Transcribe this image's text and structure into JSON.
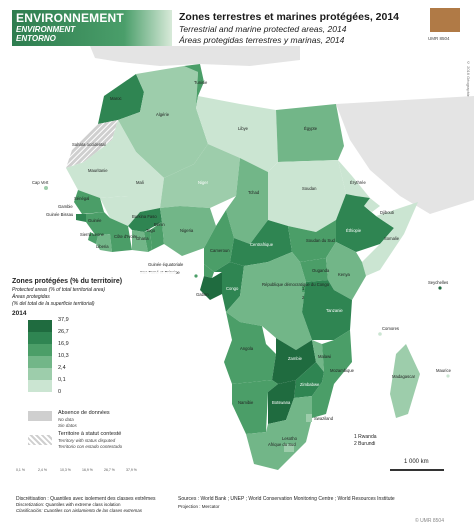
{
  "header": {
    "theme_fr": "ENVIRONNEMENT",
    "theme_en": "ENVIRONMENT",
    "theme_es": "ENTORNO",
    "title_fr": "Zones terrestres et marines protégées, 2014",
    "title_en": "Terrestrial and marine protected areas, 2014",
    "title_es": "Áreas protegidas terrestres y marinas, 2014",
    "logo_text": "UMR 8504"
  },
  "side_credit": "© 2016 Géographie-cités",
  "colors": {
    "c1": "#1f6b3f",
    "c2": "#2f8552",
    "c3": "#4b9e68",
    "c4": "#72b688",
    "c5": "#9dcdab",
    "c6": "#cbe5d2",
    "no_data": "#cfcfcf",
    "sea": "#ffffff",
    "outside": "#e4e4e4"
  },
  "legend": {
    "title_fr": "Zones protégées (% du territoire)",
    "title_en": "Protected areas (% of total territorial area)",
    "title_es1": "Áreas protegidas",
    "title_es2": "(% del total de la superficie territorial)",
    "year": "2014",
    "breaks": [
      "37,9",
      "26,7",
      "16,9",
      "10,3",
      "2,4",
      "0,1",
      "0"
    ],
    "no_data_fr": "Absence de données",
    "no_data_en": "No data",
    "no_data_es": "Sin datos",
    "disputed_fr": "Territoire à statut contesté",
    "disputed_en": "Territory with status disputed",
    "disputed_es": "Territorio con estado contestado"
  },
  "countries": {
    "maroc": "Maroc",
    "algerie": "Algérie",
    "tunisie": "Tunisie",
    "libye": "Libye",
    "egypte": "Égypte",
    "sahara": "Sahara occidental",
    "mauritanie": "Mauritanie",
    "mali": "Mali",
    "niger": "Niger",
    "tchad": "Tchad",
    "soudan": "Soudan",
    "erythree": "Érythrée",
    "djibouti": "Djibouti",
    "ethiopie": "Éthiopie",
    "somalie": "Somalie",
    "cap_vert": "Cap Vert",
    "senegal": "Sénégal",
    "gambie": "Gambie",
    "guinee_bissau": "Guinée Bissau",
    "guinee": "Guinée",
    "sierra_leone": "Sierra Leone",
    "liberia": "Liberia",
    "cote_ivoire": "Côte d'Ivoire",
    "burkina": "Burkina Faso",
    "ghana": "Ghana",
    "togo": "Togo",
    "benin": "Bénin",
    "nigeria": "Nigeria",
    "cameroun": "Cameroun",
    "centrafrique": "Centrafrique",
    "soudan_sud": "Soudan du Sud",
    "ouganda": "Ouganda",
    "kenya": "Kenya",
    "guinee_eq": "Guinée équatoriale",
    "sao_tome": "Sao Tomé et Principe",
    "gabon": "Gabon",
    "congo": "Congo",
    "rdc": "République démocratique du Congo",
    "tanzanie": "Tanzanie",
    "angola": "Angola",
    "zambie": "Zambie",
    "malawi": "Malawi",
    "mozambique": "Mozambique",
    "zimbabwe": "Zimbabwe",
    "namibie": "Namibie",
    "botswana": "Botswana",
    "afrique_sud": "Afrique du Sud",
    "lesotho": "Lesotho",
    "swaziland": "Swaziland",
    "madagascar": "Madagascar",
    "comores": "Comores",
    "maurice": "Maurice",
    "seychelles": "Seychelles",
    "rwanda_num": "1",
    "burundi_num": "2"
  },
  "notes": {
    "n1": "1 Rwanda",
    "n2": "2 Burundi"
  },
  "scale": "1 000 km",
  "footer": {
    "disc_label": "Discrétisation : Quantiles avec isolement des classes extrêmes",
    "disc_en": "Discretization: Quantiles with extreme class isolation",
    "disc_es": "Clasificación: Cuantiles con aislamiento de las clases extremas",
    "sources": "Sources : World Bank ; UNEP ; World Conservation Monitoring Centre ; World Resources Institute",
    "projection": "Projection : Mercator",
    "copyright": "© UMR 8504"
  },
  "mini_labels": [
    "0,1 %",
    "2,4 %",
    "10,3 %",
    "16,9 %",
    "26,7 %",
    "37,9 %"
  ]
}
